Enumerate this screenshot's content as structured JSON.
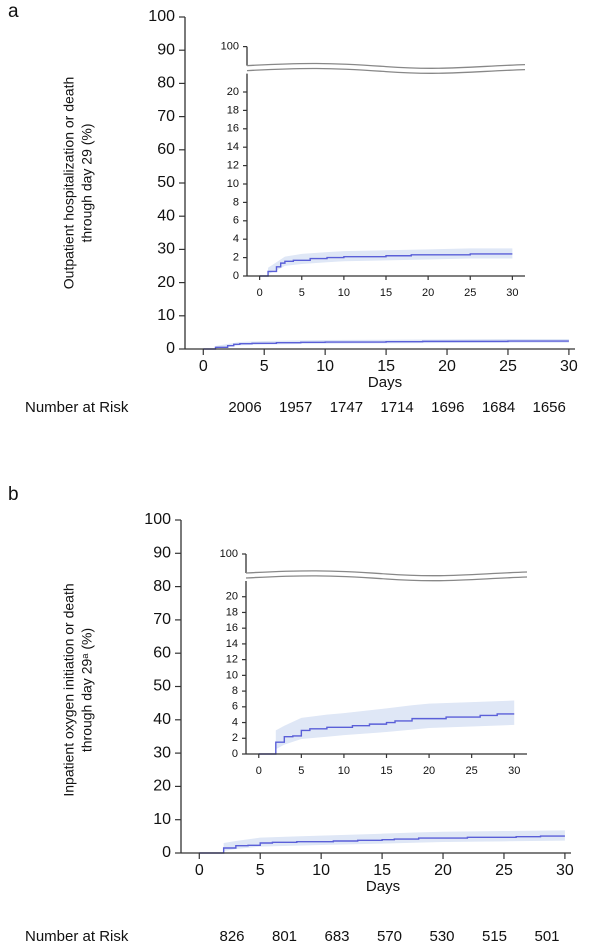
{
  "chart_data": [
    {
      "type": "line",
      "panel": "a",
      "ylabel": [
        "Outpatient hospitalization or death",
        "through day 29 (%)"
      ],
      "xlabel": "Days",
      "xlim": [
        -1.5,
        30.5
      ],
      "xticks": [
        0,
        5,
        10,
        15,
        20,
        25,
        30
      ],
      "ylim": [
        0,
        100
      ],
      "yticks": [
        0,
        10,
        20,
        30,
        40,
        50,
        60,
        70,
        80,
        90,
        100
      ],
      "series": [
        {
          "color": "#5a5fd8",
          "band_color": "#dfe7f6",
          "x": [
            0,
            1,
            1,
            2,
            2,
            2.5,
            2.5,
            3,
            3,
            4,
            4,
            6,
            6,
            8,
            8,
            10,
            10,
            15,
            15,
            18,
            18,
            25,
            25,
            30
          ],
          "values": [
            0,
            0,
            0.5,
            0.5,
            1.0,
            1.0,
            1.4,
            1.4,
            1.6,
            1.6,
            1.7,
            1.7,
            1.9,
            1.9,
            2.0,
            2.0,
            2.1,
            2.1,
            2.2,
            2.2,
            2.3,
            2.3,
            2.4,
            2.4
          ],
          "band": {
            "x": [
              1,
              2,
              3,
              5,
              8,
              10,
              15,
              20,
              25,
              30
            ],
            "upper": [
              0.9,
              1.5,
              2.1,
              2.4,
              2.6,
              2.7,
              2.8,
              2.9,
              3.0,
              3.0
            ],
            "lower": [
              0.2,
              0.6,
              1.1,
              1.3,
              1.5,
              1.6,
              1.7,
              1.8,
              1.9,
              1.9
            ]
          }
        }
      ],
      "at_risk": {
        "label": "Number at Risk",
        "values": [
          2006,
          1957,
          1747,
          1714,
          1696,
          1684,
          1656
        ]
      },
      "inset": {
        "xlim": [
          -1.5,
          31.5
        ],
        "xticks": [
          0,
          5,
          10,
          15,
          20,
          25,
          30
        ],
        "ylim": [
          0,
          22
        ],
        "yticks": [
          0,
          2,
          4,
          6,
          8,
          10,
          12,
          14,
          16,
          18,
          20
        ],
        "break_tick": 100
      }
    },
    {
      "type": "line",
      "panel": "b",
      "ylabel": [
        "Inpatient oxygen initiation or death",
        "through day 29ᵃ (%)"
      ],
      "xlabel": "Days",
      "xlim": [
        -1.5,
        30.5
      ],
      "xticks": [
        0,
        5,
        10,
        15,
        20,
        25,
        30
      ],
      "ylim": [
        0,
        100
      ],
      "yticks": [
        0,
        10,
        20,
        30,
        40,
        50,
        60,
        70,
        80,
        90,
        100
      ],
      "series": [
        {
          "color": "#5a5fd8",
          "band_color": "#dfe7f6",
          "x": [
            0,
            2,
            2,
            3,
            3,
            4,
            4,
            5,
            5,
            6,
            6,
            8,
            8,
            11,
            11,
            13,
            13,
            15,
            15,
            16,
            16,
            18,
            18,
            22,
            22,
            26,
            26,
            28,
            28,
            30
          ],
          "values": [
            0,
            0,
            1.5,
            1.5,
            2.2,
            2.2,
            2.3,
            2.3,
            3.0,
            3.0,
            3.2,
            3.2,
            3.4,
            3.4,
            3.6,
            3.6,
            3.8,
            3.8,
            4.0,
            4.0,
            4.2,
            4.2,
            4.5,
            4.5,
            4.7,
            4.7,
            4.9,
            4.9,
            5.1,
            5.1
          ],
          "band": {
            "x": [
              2,
              3,
              5,
              8,
              10,
              15,
              18,
              20,
              25,
              30
            ],
            "upper": [
              3.0,
              3.6,
              4.6,
              5.0,
              5.2,
              5.8,
              6.2,
              6.4,
              6.6,
              6.8
            ],
            "lower": [
              0.6,
              1.2,
              1.9,
              2.2,
              2.4,
              2.8,
              3.1,
              3.3,
              3.5,
              3.7
            ]
          }
        }
      ],
      "at_risk": {
        "label": "Number at Risk",
        "values": [
          826,
          801,
          683,
          570,
          530,
          515,
          501
        ]
      },
      "inset": {
        "xlim": [
          -1.5,
          31.5
        ],
        "xticks": [
          0,
          5,
          10,
          15,
          20,
          25,
          30
        ],
        "ylim": [
          0,
          22
        ],
        "yticks": [
          0,
          2,
          4,
          6,
          8,
          10,
          12,
          14,
          16,
          18,
          20
        ],
        "break_tick": 100
      }
    }
  ]
}
